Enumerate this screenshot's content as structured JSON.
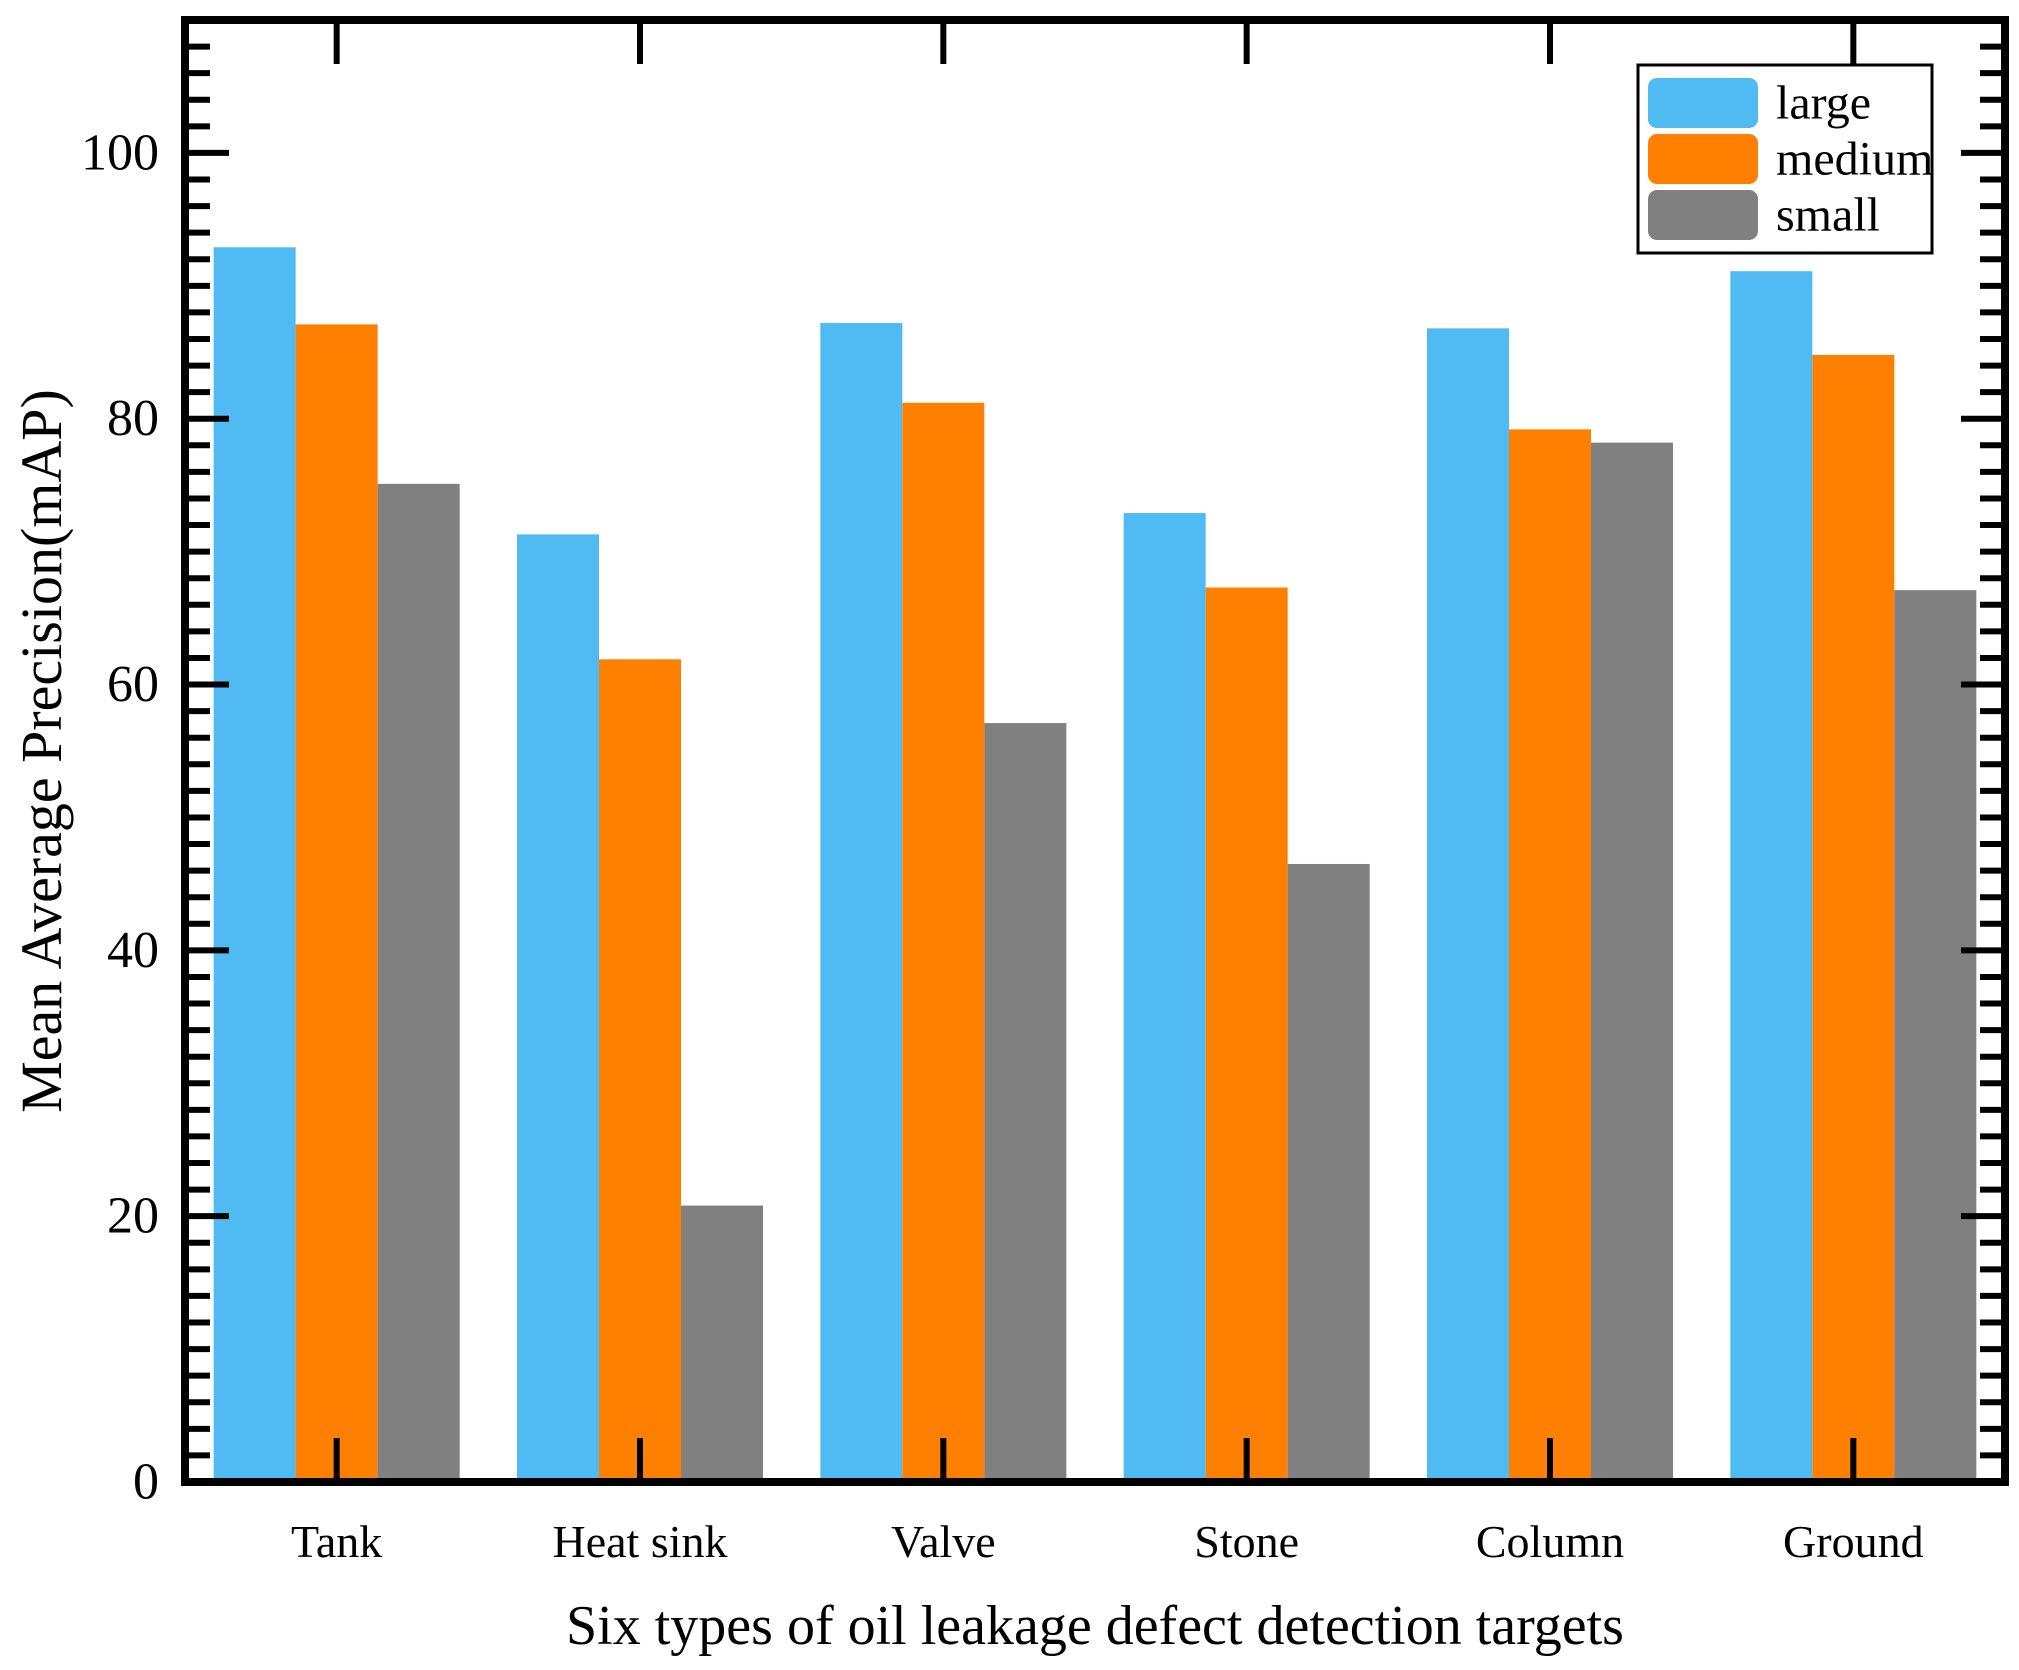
{
  "figure": {
    "background": "#ffffff",
    "frame_color": "#000000",
    "xlabel": "Six types of oil leakage defect detection targets",
    "ylabel": "Mean Average Precision(mAP)"
  },
  "legend": {
    "position": "top-right",
    "items": [
      {
        "label": "large",
        "color": "#4FBBF2"
      },
      {
        "label": "medium",
        "color": "#FF8000"
      },
      {
        "label": "small",
        "color": "#808080"
      }
    ]
  },
  "chart_data": {
    "type": "bar",
    "title": "",
    "xlabel": "Six types of oil leakage defect detection targets",
    "ylabel": "Mean Average Precision(mAP)",
    "categories": [
      "Tank",
      "Heat sink",
      "Valve",
      "Stone",
      "Column",
      "Ground"
    ],
    "series": [
      {
        "name": "large",
        "color": "#4FBBF2",
        "values": [
          92.9,
          71.3,
          87.2,
          72.9,
          86.8,
          91.1
        ]
      },
      {
        "name": "medium",
        "color": "#FF8000",
        "values": [
          87.1,
          61.9,
          81.2,
          67.3,
          79.2,
          84.8
        ]
      },
      {
        "name": "small",
        "color": "#808080",
        "values": [
          75.1,
          20.8,
          57.1,
          46.5,
          78.2,
          67.1
        ]
      }
    ],
    "ylim": [
      0,
      110
    ],
    "yticks": [
      0,
      20,
      40,
      60,
      80,
      100
    ],
    "y_minor_step": 2,
    "grid": false,
    "legend_position": "top-right",
    "bar_edge": "none"
  }
}
